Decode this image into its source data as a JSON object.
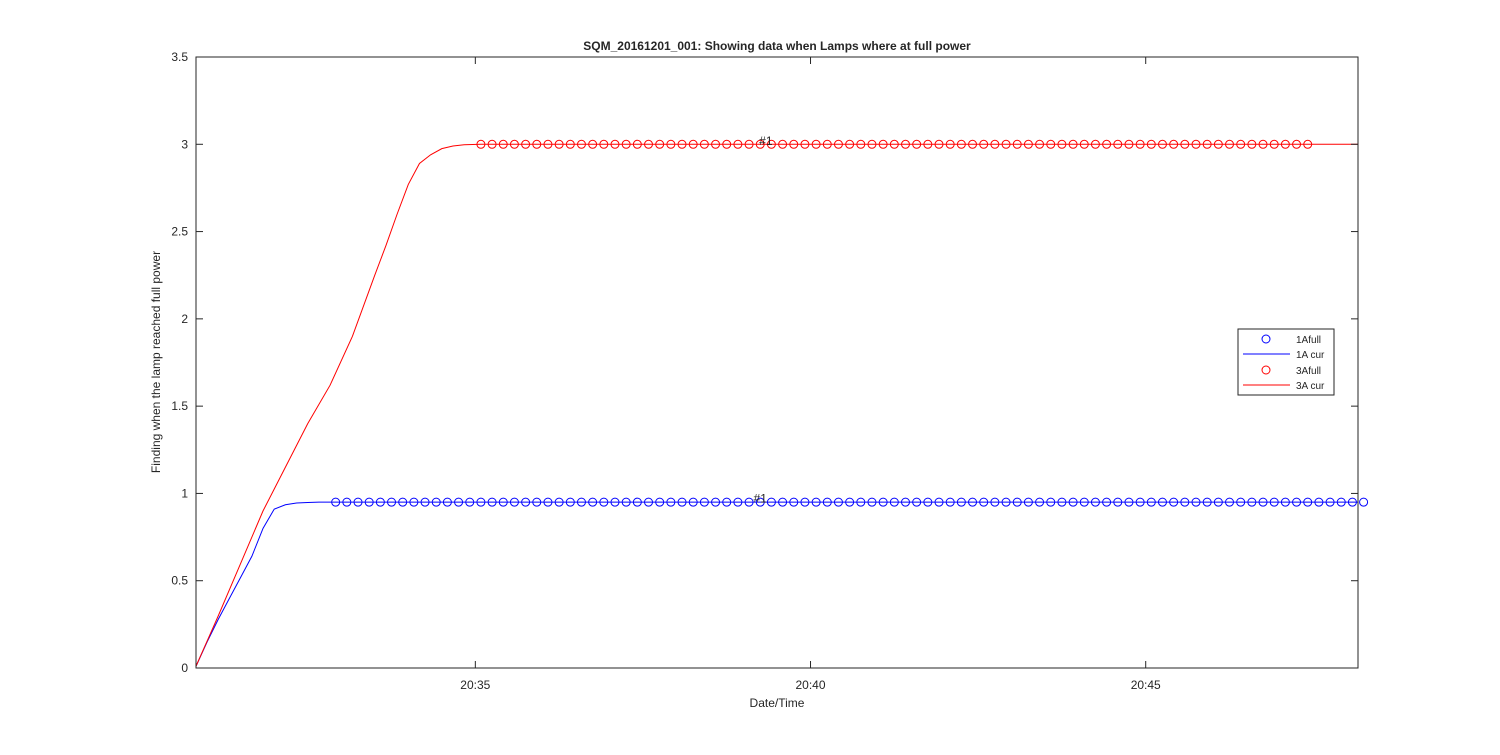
{
  "chart_data": {
    "type": "line",
    "title": "SQM_20161201_001: Showing data when Lamps where at full power",
    "xlabel": "Date/Time",
    "ylabel": "Finding when the lamp reached full power",
    "xlim": [
      "20:30:50",
      "20:48:10"
    ],
    "ylim": [
      0,
      3.5
    ],
    "xticks": [
      "20:35",
      "20:40",
      "20:45"
    ],
    "yticks": [
      "0",
      "0.5",
      "1",
      "1.5",
      "2",
      "2.5",
      "3",
      "3.5"
    ],
    "grid": false,
    "legend_position": "east",
    "legend": [
      "1Afull",
      "1A cur",
      "3Afull",
      "3A cur"
    ],
    "annotations": [
      {
        "text": "#1",
        "x": "20:39:20",
        "y": 3.02,
        "series": "3A"
      },
      {
        "text": "#1",
        "x": "20:39:15",
        "y": 0.97,
        "series": "1A"
      }
    ],
    "series": [
      {
        "name": "1Afull",
        "style": "circle-markers",
        "color": "#0000ff",
        "x_start": "20:32:55",
        "x_step_seconds": 10,
        "count": 93,
        "y": 0.95
      },
      {
        "name": "1A cur",
        "style": "line",
        "color": "#0000ff",
        "x": [
          "20:30:50",
          "20:31:00",
          "20:31:10",
          "20:31:20",
          "20:31:30",
          "20:31:40",
          "20:31:50",
          "20:32:00",
          "20:32:10",
          "20:32:20",
          "20:32:30",
          "20:32:40",
          "20:32:55",
          "20:48:10"
        ],
        "y": [
          0.01,
          0.15,
          0.28,
          0.4,
          0.52,
          0.64,
          0.8,
          0.91,
          0.935,
          0.945,
          0.948,
          0.95,
          0.95,
          0.95
        ]
      },
      {
        "name": "3Afull",
        "style": "circle-markers",
        "color": "#ff0000",
        "x_start": "20:35:05",
        "x_step_seconds": 10,
        "count": 75,
        "y": 3.0
      },
      {
        "name": "3A cur",
        "style": "line",
        "color": "#ff0000",
        "x": [
          "20:30:50",
          "20:31:10",
          "20:31:30",
          "20:31:50",
          "20:32:10",
          "20:32:30",
          "20:32:50",
          "20:33:10",
          "20:33:30",
          "20:33:40",
          "20:33:50",
          "20:34:00",
          "20:34:10",
          "20:34:20",
          "20:34:30",
          "20:34:40",
          "20:34:50",
          "20:35:05",
          "20:48:10"
        ],
        "y": [
          0.01,
          0.3,
          0.6,
          0.9,
          1.15,
          1.4,
          1.62,
          1.9,
          2.25,
          2.42,
          2.6,
          2.77,
          2.89,
          2.94,
          2.975,
          2.99,
          2.997,
          3.0,
          3.0
        ]
      }
    ]
  }
}
